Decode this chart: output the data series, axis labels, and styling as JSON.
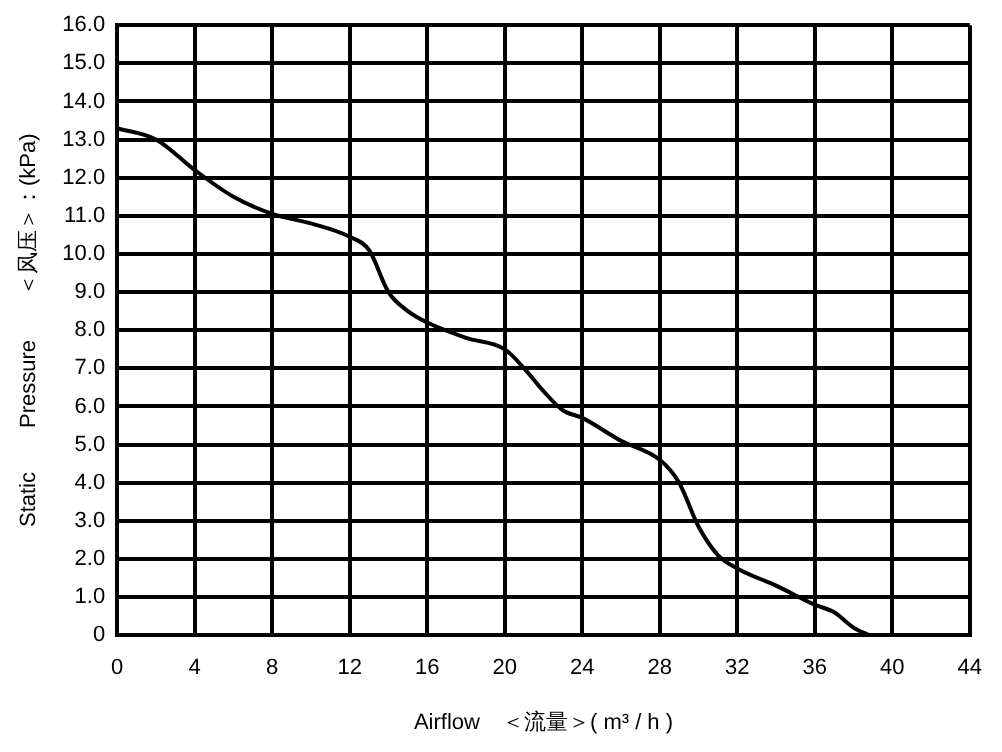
{
  "chart_data": {
    "type": "line",
    "xlabel": "Airflow　＜流量＞( m³ / h )",
    "ylabel": "Static　　Pressure　　＜风压＞：(kPa)",
    "x": [
      0,
      2,
      4,
      6,
      8,
      10,
      12,
      13,
      14,
      15,
      16,
      18,
      20,
      21,
      22,
      23,
      24,
      26,
      28,
      29,
      30,
      31,
      32,
      34,
      36,
      37,
      38,
      38.8
    ],
    "series": [
      {
        "color": "#000000",
        "values": [
          13.3,
          13.0,
          12.2,
          11.5,
          11.05,
          10.8,
          10.45,
          10.1,
          9.0,
          8.5,
          8.2,
          7.8,
          7.5,
          7.0,
          6.4,
          5.9,
          5.7,
          5.1,
          4.6,
          4.0,
          2.85,
          2.1,
          1.75,
          1.3,
          0.8,
          0.6,
          0.2,
          0
        ]
      }
    ],
    "xlim": [
      0,
      44
    ],
    "xticks": [
      0,
      4,
      8,
      12,
      16,
      20,
      24,
      28,
      32,
      36,
      40,
      44
    ],
    "ylim": [
      0,
      16
    ],
    "yticks": [
      {
        "value": 0,
        "label": "0"
      },
      {
        "value": 1,
        "label": "1.0"
      },
      {
        "value": 2,
        "label": "2.0"
      },
      {
        "value": 3,
        "label": "3.0"
      },
      {
        "value": 4,
        "label": "4.0"
      },
      {
        "value": 5,
        "label": "5.0"
      },
      {
        "value": 6,
        "label": "6.0"
      },
      {
        "value": 7,
        "label": "7.0"
      },
      {
        "value": 8,
        "label": "8.0"
      },
      {
        "value": 9,
        "label": "9.0"
      },
      {
        "value": 10,
        "label": "10.0"
      },
      {
        "value": 11,
        "label": "11.0"
      },
      {
        "value": 12,
        "label": "12.0"
      },
      {
        "value": 13,
        "label": "13.0"
      },
      {
        "value": 14,
        "label": "14.0"
      },
      {
        "value": 15,
        "label": "15.0"
      },
      {
        "value": 16,
        "label": "16.0"
      }
    ],
    "grid": true,
    "marker": "none",
    "line_style": "solid",
    "legend": false
  }
}
